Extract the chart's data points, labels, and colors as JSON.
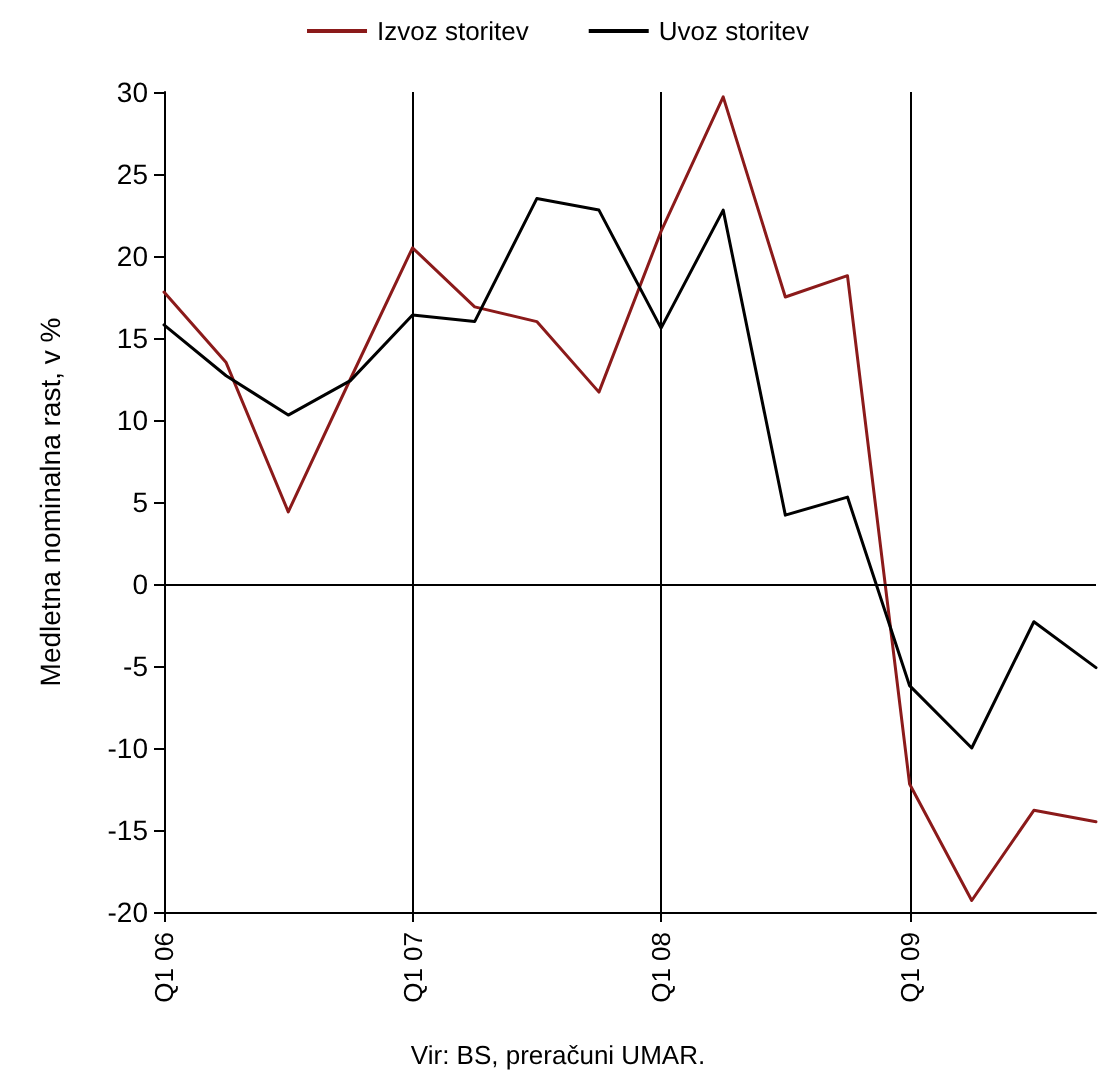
{
  "chart_data": {
    "type": "line",
    "ylabel": "Medletna nominalna rast, v %",
    "annotations": [
      "Vir: BS, preračuni UMAR."
    ],
    "categories": [
      "Q1 06",
      null,
      null,
      null,
      "Q1 07",
      null,
      null,
      null,
      "Q1 08",
      null,
      null,
      null,
      "Q1 09",
      null,
      null,
      null
    ],
    "series": [
      {
        "name": "Izvoz storitev",
        "color": "#8b1a1a",
        "values": [
          17.8,
          13.5,
          4.4,
          12.5,
          20.5,
          16.9,
          16.0,
          11.7,
          21.5,
          29.7,
          17.5,
          18.8,
          -12.2,
          -19.3,
          -13.8,
          -14.5
        ]
      },
      {
        "name": "Uvoz storitev",
        "color": "#000000",
        "values": [
          15.8,
          12.7,
          10.3,
          12.4,
          16.4,
          16.0,
          23.5,
          22.8,
          15.6,
          22.8,
          4.2,
          5.3,
          -6.2,
          -10.0,
          -2.3,
          -5.1
        ]
      }
    ],
    "ylim": [
      -20,
      30
    ],
    "yticks": [
      -20,
      -15,
      -10,
      -5,
      0,
      5,
      10,
      15,
      20,
      25,
      30
    ],
    "ref_lines": [
      {
        "axis": "y",
        "value": 0,
        "label": null,
        "color": "#000000"
      }
    ],
    "grid": "x",
    "legend": "top",
    "marker": "none",
    "line_style": "solid"
  }
}
